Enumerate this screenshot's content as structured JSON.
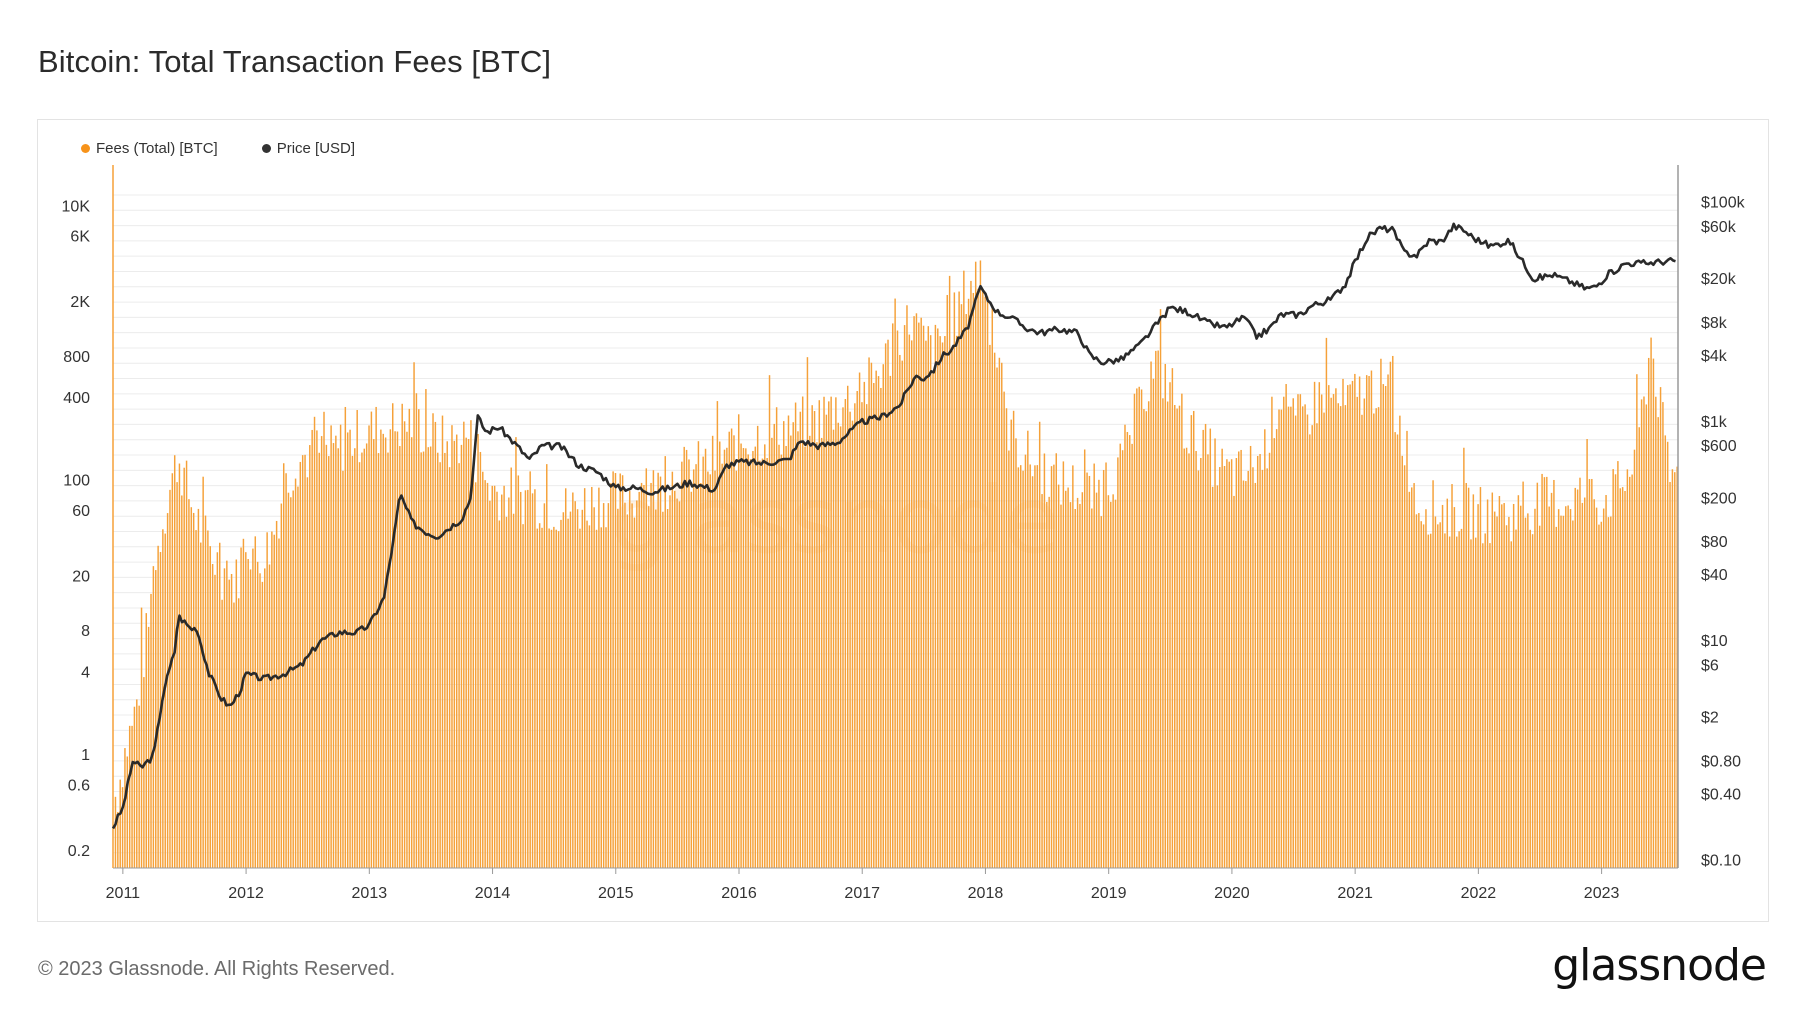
{
  "page": {
    "title": "Bitcoin: Total Transaction Fees [BTC]",
    "copyright": "© 2023 Glassnode. All Rights Reserved.",
    "brand": "glassnode",
    "watermark": "glassnode"
  },
  "colors": {
    "fees": "#f7931a",
    "fees_bar": "#f5a139",
    "price": "#2a2a2a",
    "grid": "#ececec",
    "axis": "#555555"
  },
  "legend": [
    {
      "label": "Fees (Total) [BTC]",
      "color": "#f7931a"
    },
    {
      "label": "Price [USD]",
      "color": "#333333"
    }
  ],
  "chart_data": {
    "type": "bar",
    "title": "Bitcoin: Total Transaction Fees [BTC]",
    "xlabel": "",
    "ylabel": "",
    "x_range": [
      2010.92,
      2023.62
    ],
    "x_ticks": [
      "2011",
      "2012",
      "2013",
      "2014",
      "2015",
      "2016",
      "2017",
      "2018",
      "2019",
      "2020",
      "2021",
      "2022",
      "2023"
    ],
    "y_left_scale": "log",
    "y_left_range": [
      0.15,
      20000
    ],
    "y_left_ticks": [
      {
        "value": 10000,
        "label": "10K"
      },
      {
        "value": 6000,
        "label": "6K"
      },
      {
        "value": 2000,
        "label": "2K"
      },
      {
        "value": 800,
        "label": "800"
      },
      {
        "value": 400,
        "label": "400"
      },
      {
        "value": 100,
        "label": "100"
      },
      {
        "value": 60,
        "label": "60"
      },
      {
        "value": 20,
        "label": "20"
      },
      {
        "value": 8,
        "label": "8"
      },
      {
        "value": 4,
        "label": "4"
      },
      {
        "value": 1,
        "label": "1"
      },
      {
        "value": 0.6,
        "label": "0.6"
      },
      {
        "value": 0.2,
        "label": "0.2"
      }
    ],
    "y_right_scale": "log",
    "y_right_range": [
      0.085,
      220000
    ],
    "y_right_ticks": [
      {
        "value": 100000,
        "label": "$100k"
      },
      {
        "value": 60000,
        "label": "$60k"
      },
      {
        "value": 20000,
        "label": "$20k"
      },
      {
        "value": 8000,
        "label": "$8k"
      },
      {
        "value": 4000,
        "label": "$4k"
      },
      {
        "value": 1000,
        "label": "$1k"
      },
      {
        "value": 600,
        "label": "$600"
      },
      {
        "value": 200,
        "label": "$200"
      },
      {
        "value": 80,
        "label": "$80"
      },
      {
        "value": 40,
        "label": "$40"
      },
      {
        "value": 10,
        "label": "$10"
      },
      {
        "value": 6,
        "label": "$6"
      },
      {
        "value": 2,
        "label": "$2"
      },
      {
        "value": 0.8,
        "label": "$0.80"
      },
      {
        "value": 0.4,
        "label": "$0.40"
      },
      {
        "value": 0.1,
        "label": "$0.10"
      }
    ],
    "series": [
      {
        "name": "Fees (Total) [BTC]",
        "type": "bar",
        "axis": "left",
        "anchors": [
          [
            2010.95,
            0.5
          ],
          [
            2011.0,
            0.9
          ],
          [
            2011.1,
            2.0
          ],
          [
            2011.2,
            8.0
          ],
          [
            2011.3,
            40
          ],
          [
            2011.37,
            80
          ],
          [
            2011.45,
            150
          ],
          [
            2011.55,
            70
          ],
          [
            2011.65,
            40
          ],
          [
            2011.8,
            22
          ],
          [
            2011.92,
            18
          ],
          [
            2012.0,
            40
          ],
          [
            2012.1,
            25
          ],
          [
            2012.2,
            35
          ],
          [
            2012.3,
            80
          ],
          [
            2012.4,
            140
          ],
          [
            2012.55,
            160
          ],
          [
            2012.7,
            160
          ],
          [
            2012.85,
            200
          ],
          [
            2013.0,
            230
          ],
          [
            2013.2,
            250
          ],
          [
            2013.35,
            270
          ],
          [
            2013.5,
            210
          ],
          [
            2013.65,
            180
          ],
          [
            2013.8,
            220
          ],
          [
            2013.9,
            120
          ],
          [
            2014.0,
            85
          ],
          [
            2014.3,
            75
          ],
          [
            2014.6,
            60
          ],
          [
            2014.8,
            70
          ],
          [
            2015.0,
            75
          ],
          [
            2015.3,
            85
          ],
          [
            2015.5,
            110
          ],
          [
            2015.75,
            130
          ],
          [
            2016.0,
            190
          ],
          [
            2016.3,
            230
          ],
          [
            2016.6,
            270
          ],
          [
            2016.8,
            350
          ],
          [
            2017.0,
            430
          ],
          [
            2017.15,
            650
          ],
          [
            2017.3,
            1100
          ],
          [
            2017.4,
            1500
          ],
          [
            2017.5,
            1000
          ],
          [
            2017.6,
            900
          ],
          [
            2017.75,
            1500
          ],
          [
            2017.85,
            2500
          ],
          [
            2017.97,
            3500
          ],
          [
            2018.05,
            1300
          ],
          [
            2018.15,
            300
          ],
          [
            2018.3,
            160
          ],
          [
            2018.5,
            110
          ],
          [
            2018.7,
            90
          ],
          [
            2018.85,
            80
          ],
          [
            2018.95,
            90
          ],
          [
            2019.1,
            130
          ],
          [
            2019.25,
            350
          ],
          [
            2019.38,
            700
          ],
          [
            2019.5,
            500
          ],
          [
            2019.62,
            250
          ],
          [
            2019.8,
            160
          ],
          [
            2019.95,
            110
          ],
          [
            2020.1,
            110
          ],
          [
            2020.25,
            150
          ],
          [
            2020.4,
            450
          ],
          [
            2020.5,
            250
          ],
          [
            2020.6,
            300
          ],
          [
            2020.75,
            450
          ],
          [
            2020.9,
            350
          ],
          [
            2021.05,
            450
          ],
          [
            2021.2,
            500
          ],
          [
            2021.3,
            350
          ],
          [
            2021.4,
            200
          ],
          [
            2021.5,
            70
          ],
          [
            2021.7,
            60
          ],
          [
            2021.9,
            60
          ],
          [
            2022.1,
            55
          ],
          [
            2022.3,
            55
          ],
          [
            2022.5,
            70
          ],
          [
            2022.7,
            70
          ],
          [
            2022.85,
            80
          ],
          [
            2023.0,
            70
          ],
          [
            2023.15,
            90
          ],
          [
            2023.25,
            130
          ],
          [
            2023.35,
            400
          ],
          [
            2023.4,
            1100
          ],
          [
            2023.48,
            300
          ],
          [
            2023.55,
            110
          ],
          [
            2023.6,
            110
          ]
        ]
      },
      {
        "name": "Price [USD]",
        "type": "line",
        "axis": "right",
        "anchors": [
          [
            2010.92,
            0.2
          ],
          [
            2011.0,
            0.3
          ],
          [
            2011.08,
            0.8
          ],
          [
            2011.15,
            0.7
          ],
          [
            2011.25,
            0.9
          ],
          [
            2011.33,
            3.5
          ],
          [
            2011.42,
            8
          ],
          [
            2011.45,
            17
          ],
          [
            2011.55,
            13
          ],
          [
            2011.6,
            13
          ],
          [
            2011.7,
            5
          ],
          [
            2011.8,
            3
          ],
          [
            2011.87,
            2.5
          ],
          [
            2011.95,
            3.5
          ],
          [
            2012.0,
            5
          ],
          [
            2012.15,
            4.5
          ],
          [
            2012.3,
            5
          ],
          [
            2012.45,
            6
          ],
          [
            2012.6,
            10
          ],
          [
            2012.75,
            12
          ],
          [
            2012.9,
            12
          ],
          [
            2013.0,
            14
          ],
          [
            2013.12,
            25
          ],
          [
            2013.2,
            90
          ],
          [
            2013.25,
            220
          ],
          [
            2013.35,
            120
          ],
          [
            2013.45,
            100
          ],
          [
            2013.55,
            90
          ],
          [
            2013.75,
            130
          ],
          [
            2013.82,
            200
          ],
          [
            2013.88,
            1100
          ],
          [
            2013.95,
            800
          ],
          [
            2014.05,
            900
          ],
          [
            2014.2,
            600
          ],
          [
            2014.3,
            450
          ],
          [
            2014.4,
            600
          ],
          [
            2014.55,
            600
          ],
          [
            2014.7,
            400
          ],
          [
            2014.85,
            350
          ],
          [
            2015.0,
            250
          ],
          [
            2015.15,
            250
          ],
          [
            2015.3,
            230
          ],
          [
            2015.5,
            260
          ],
          [
            2015.6,
            280
          ],
          [
            2015.8,
            240
          ],
          [
            2015.9,
            400
          ],
          [
            2016.0,
            430
          ],
          [
            2016.2,
            420
          ],
          [
            2016.4,
            450
          ],
          [
            2016.5,
            670
          ],
          [
            2016.65,
            600
          ],
          [
            2016.8,
            650
          ],
          [
            2016.95,
            900
          ],
          [
            2017.0,
            1000
          ],
          [
            2017.15,
            1100
          ],
          [
            2017.3,
            1400
          ],
          [
            2017.43,
            2600
          ],
          [
            2017.5,
            2500
          ],
          [
            2017.58,
            3000
          ],
          [
            2017.65,
            4000
          ],
          [
            2017.72,
            4500
          ],
          [
            2017.85,
            7000
          ],
          [
            2017.96,
            17000
          ],
          [
            2018.0,
            14000
          ],
          [
            2018.1,
            10000
          ],
          [
            2018.2,
            9000
          ],
          [
            2018.35,
            7000
          ],
          [
            2018.45,
            6500
          ],
          [
            2018.6,
            7000
          ],
          [
            2018.75,
            6500
          ],
          [
            2018.85,
            4000
          ],
          [
            2018.95,
            3500
          ],
          [
            2019.1,
            3700
          ],
          [
            2019.25,
            5000
          ],
          [
            2019.4,
            8000
          ],
          [
            2019.5,
            11000
          ],
          [
            2019.65,
            10000
          ],
          [
            2019.8,
            8000
          ],
          [
            2019.95,
            7200
          ],
          [
            2020.1,
            9000
          ],
          [
            2020.2,
            6000
          ],
          [
            2020.3,
            7000
          ],
          [
            2020.4,
            9500
          ],
          [
            2020.55,
            9500
          ],
          [
            2020.65,
            11500
          ],
          [
            2020.8,
            13000
          ],
          [
            2020.92,
            18000
          ],
          [
            2021.0,
            29000
          ],
          [
            2021.1,
            48000
          ],
          [
            2021.2,
            58000
          ],
          [
            2021.3,
            57000
          ],
          [
            2021.4,
            35000
          ],
          [
            2021.5,
            33000
          ],
          [
            2021.6,
            45000
          ],
          [
            2021.7,
            44000
          ],
          [
            2021.8,
            61000
          ],
          [
            2021.87,
            57000
          ],
          [
            2021.97,
            47000
          ],
          [
            2022.1,
            40000
          ],
          [
            2022.25,
            45000
          ],
          [
            2022.35,
            30000
          ],
          [
            2022.45,
            20000
          ],
          [
            2022.6,
            22000
          ],
          [
            2022.75,
            19000
          ],
          [
            2022.87,
            16500
          ],
          [
            2022.95,
            17000
          ],
          [
            2023.05,
            22000
          ],
          [
            2023.2,
            28000
          ],
          [
            2023.35,
            28000
          ],
          [
            2023.5,
            29000
          ],
          [
            2023.6,
            29500
          ]
        ]
      }
    ]
  }
}
